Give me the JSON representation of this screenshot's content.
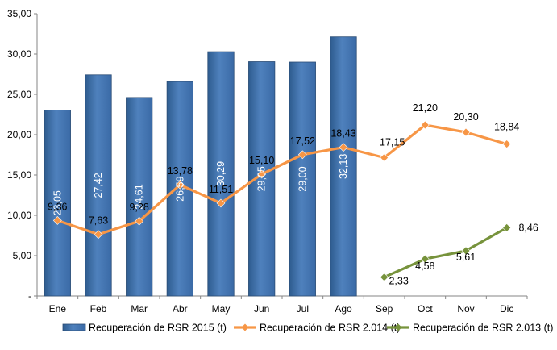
{
  "chart_data": {
    "type": "bar",
    "categories": [
      "Ene",
      "Feb",
      "Mar",
      "Abr",
      "May",
      "Jun",
      "Jul",
      "Ago",
      "Sep",
      "Oct",
      "Nov",
      "Dic"
    ],
    "y_tick_labels": [
      "-",
      "5,00",
      "10,00",
      "15,00",
      "20,00",
      "25,00",
      "30,00",
      "35,00"
    ],
    "ylim": [
      0,
      35
    ],
    "grid": false,
    "legend_position": "bottom",
    "series": [
      {
        "name": "Recuperación de RSR 2015 (t)",
        "kind": "bar",
        "color": "#4F81BD",
        "values": [
          23.05,
          27.42,
          24.61,
          26.59,
          30.29,
          29.05,
          29.0,
          32.13,
          null,
          null,
          null,
          null
        ],
        "labels": [
          "23,05",
          "27,42",
          "24,61",
          "26,59",
          "30,29",
          "29,05",
          "29,00",
          "32,13",
          "",
          "",
          "",
          ""
        ]
      },
      {
        "name": "Recuperación de RSR 2.014 (t)",
        "kind": "line",
        "color": "#F79646",
        "values": [
          9.36,
          7.63,
          9.28,
          13.78,
          11.51,
          15.1,
          17.52,
          18.43,
          17.15,
          21.2,
          20.3,
          18.84
        ],
        "labels": [
          "9,36",
          "7,63",
          "9,28",
          "13,78",
          "11,51",
          "15,10",
          "17,52",
          "18,43",
          "17,15",
          "21,20",
          "20,30",
          "18,84"
        ]
      },
      {
        "name": "Recuperación de RSR 2.013 (t)",
        "kind": "line",
        "color": "#77933C",
        "values": [
          null,
          null,
          null,
          null,
          null,
          null,
          null,
          null,
          2.33,
          4.58,
          5.61,
          8.46
        ],
        "labels": [
          "",
          "",
          "",
          "",
          "",
          "",
          "",
          "",
          "2,33",
          "4,58",
          "5,61",
          "8,46"
        ]
      }
    ]
  }
}
